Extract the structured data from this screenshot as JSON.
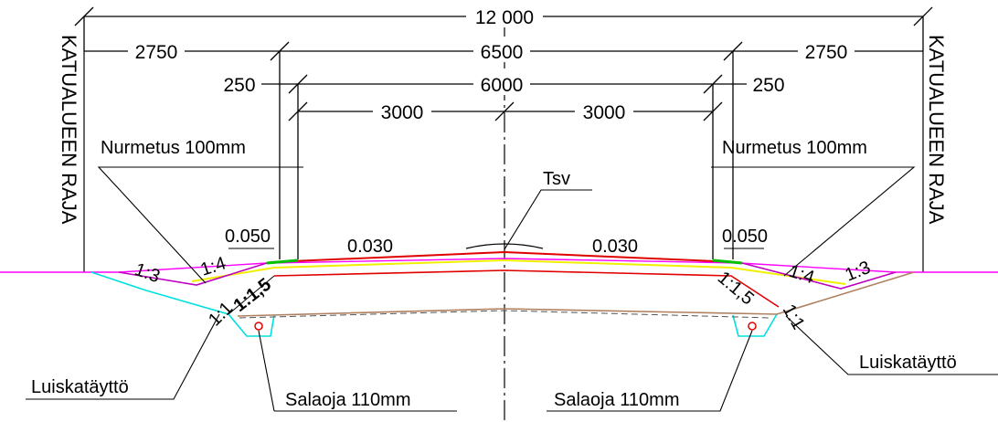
{
  "dimensions": {
    "total": "12 000",
    "left_outer": "2750",
    "middle": "6500",
    "right_outer": "2750",
    "left_shoulder": "250",
    "carriageway": "6000",
    "right_shoulder": "250",
    "left_lane": "3000",
    "right_lane": "3000"
  },
  "labels": {
    "boundary_left": "KATUALUEEN RAJA",
    "boundary_right": "KATUALUEEN RAJA",
    "seeding_left": "Nurmetus 100mm",
    "seeding_right": "Nurmetus 100mm",
    "tsv": "Tsv",
    "fill_left": "Luiskatäyttö",
    "fill_right": "Luiskatäyttö",
    "drain_left": "Salaoja 110mm",
    "drain_right": "Salaoja 110mm"
  },
  "values": {
    "edge_left": "0.050",
    "edge_right": "0.050",
    "slope_left": "0.030",
    "slope_right": "0.030"
  },
  "slopes": {
    "left_outer": "1:3",
    "left_inner": "1:4",
    "left_trench": "1:1,5",
    "left_small": "1:1",
    "right_inner": "1:4",
    "right_outer": "1:3",
    "right_trench": "1:1,5",
    "right_small": "1:1"
  },
  "colors": {
    "magenta": "#ff00ff",
    "red": "#e00000",
    "yellow": "#f0f000",
    "cyan": "#00e0e0",
    "green": "#00c000",
    "brown": "#b08060",
    "purple": "#c000c0"
  }
}
